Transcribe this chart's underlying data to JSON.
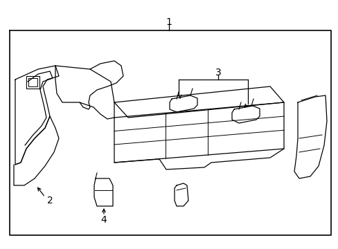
{
  "background_color": "#ffffff",
  "border_color": "#000000",
  "border_linewidth": 1.2,
  "fig_width": 4.89,
  "fig_height": 3.6,
  "dpi": 100,
  "label_1": "1",
  "label_2": "2",
  "label_3": "3",
  "label_4": "4",
  "label_fontsize": 10,
  "line_color": "#000000",
  "line_width": 0.9,
  "border": [
    14,
    44,
    478,
    340
  ]
}
